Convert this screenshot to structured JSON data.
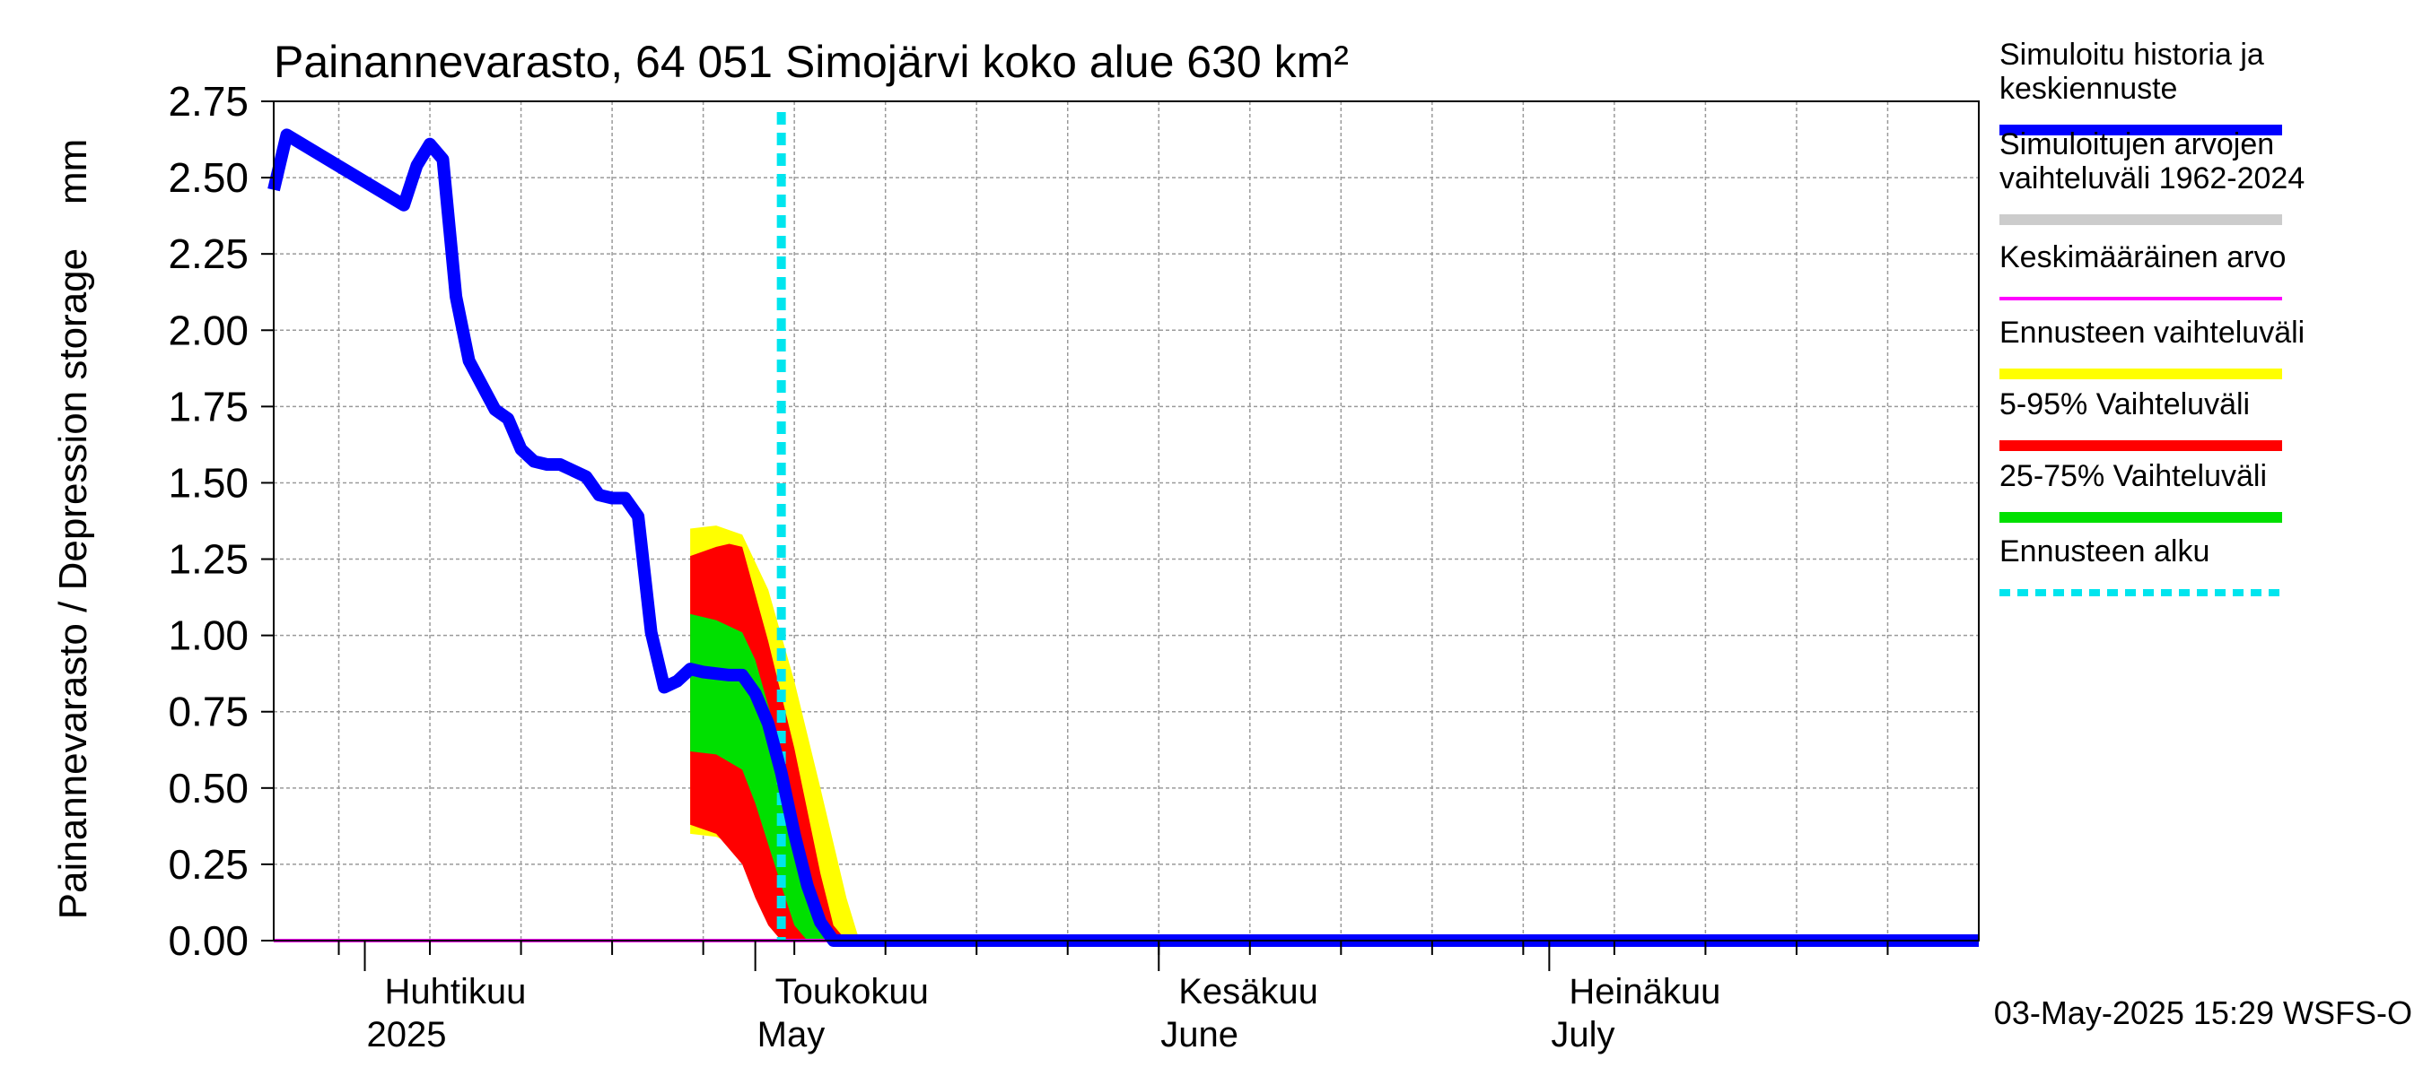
{
  "chart_data": {
    "type": "area",
    "title": "Painannevarasto, 64 051 Simojärvi koko alue 630 km²",
    "ylabel": "Painannevarasto / Depression storage    mm",
    "ylim": [
      0,
      2.75
    ],
    "yticks": [
      "0.00",
      "0.25",
      "0.50",
      "0.75",
      "1.00",
      "1.25",
      "1.50",
      "1.75",
      "2.00",
      "2.25",
      "2.50",
      "2.75"
    ],
    "xlim": [
      "2025-03-25",
      "2025-08-03"
    ],
    "grid": true,
    "month_labels": [
      {
        "date": "2025-04-01",
        "line1": "Huhtikuu",
        "line2": "2025"
      },
      {
        "date": "2025-05-01",
        "line1": "Toukokuu",
        "line2": "May"
      },
      {
        "date": "2025-06-01",
        "line1": "Kesäkuu",
        "line2": "June"
      },
      {
        "date": "2025-07-01",
        "line1": "Heinäkuu",
        "line2": "July"
      }
    ],
    "forecast_start": "2025-05-03",
    "footer": "03-May-2025 15:29 WSFS-O",
    "legend": [
      {
        "label": "Simuloitu historia ja keskiennuste",
        "color": "#0000ff",
        "style": "solid"
      },
      {
        "label": "Simuloitujen arvojen vaihteluväli 1962-2024",
        "color": "#cccccc",
        "style": "solid"
      },
      {
        "label": "Keskimääräinen arvo",
        "color": "#ff00ff",
        "style": "thin"
      },
      {
        "label": "Ennusteen vaihteluväli",
        "color": "#ffff00",
        "style": "solid"
      },
      {
        "label": "5-95% Vaihteluväli",
        "color": "#ff0000",
        "style": "solid"
      },
      {
        "label": "25-75% Vaihteluväli",
        "color": "#00e000",
        "style": "solid"
      },
      {
        "label": "Ennusteen alku",
        "color": "#00e5ee",
        "style": "dashed"
      }
    ],
    "legend_placement": "right",
    "series": [
      {
        "name": "Simuloitu historia ja keskiennuste",
        "color": "#0000ff",
        "points": [
          [
            "2025-03-25",
            2.46
          ],
          [
            "2025-03-26",
            2.64
          ],
          [
            "2025-04-04",
            2.41
          ],
          [
            "2025-04-05",
            2.54
          ],
          [
            "2025-04-06",
            2.61
          ],
          [
            "2025-04-07",
            2.56
          ],
          [
            "2025-04-08",
            2.11
          ],
          [
            "2025-04-09",
            1.9
          ],
          [
            "2025-04-11",
            1.74
          ],
          [
            "2025-04-12",
            1.71
          ],
          [
            "2025-04-13",
            1.61
          ],
          [
            "2025-04-14",
            1.57
          ],
          [
            "2025-04-15",
            1.56
          ],
          [
            "2025-04-16",
            1.56
          ],
          [
            "2025-04-18",
            1.52
          ],
          [
            "2025-04-19",
            1.46
          ],
          [
            "2025-04-20",
            1.45
          ],
          [
            "2025-04-21",
            1.45
          ],
          [
            "2025-04-22",
            1.39
          ],
          [
            "2025-04-23",
            1.01
          ],
          [
            "2025-04-24",
            0.83
          ],
          [
            "2025-04-25",
            0.85
          ],
          [
            "2025-04-26",
            0.89
          ],
          [
            "2025-04-27",
            0.88
          ],
          [
            "2025-04-29",
            0.87
          ],
          [
            "2025-04-30",
            0.87
          ],
          [
            "2025-05-01",
            0.81
          ],
          [
            "2025-05-02",
            0.71
          ],
          [
            "2025-05-03",
            0.55
          ],
          [
            "2025-05-04",
            0.35
          ],
          [
            "2025-05-05",
            0.18
          ],
          [
            "2025-05-06",
            0.06
          ],
          [
            "2025-05-07",
            0.0
          ],
          [
            "2025-08-03",
            0.0
          ]
        ]
      },
      {
        "name": "Keskimääräinen arvo",
        "color": "#ff00ff",
        "points": [
          [
            "2025-03-25",
            0.0
          ],
          [
            "2025-08-03",
            0.0
          ]
        ]
      }
    ],
    "bands": [
      {
        "name": "Ennusteen vaihteluväli",
        "color": "#ffff00",
        "upper": [
          [
            "2025-04-26",
            1.35
          ],
          [
            "2025-04-28",
            1.36
          ],
          [
            "2025-04-30",
            1.33
          ],
          [
            "2025-05-02",
            1.15
          ],
          [
            "2025-05-04",
            0.85
          ],
          [
            "2025-05-06",
            0.5
          ],
          [
            "2025-05-08",
            0.14
          ],
          [
            "2025-05-09",
            0.0
          ]
        ],
        "lower": [
          [
            "2025-04-26",
            0.35
          ],
          [
            "2025-04-28",
            0.34
          ],
          [
            "2025-04-30",
            0.3
          ],
          [
            "2025-05-02",
            0.14
          ],
          [
            "2025-05-03",
            0.0
          ]
        ]
      },
      {
        "name": "5-95% Vaihteluväli",
        "color": "#ff0000",
        "upper": [
          [
            "2025-04-26",
            1.26
          ],
          [
            "2025-04-28",
            1.29
          ],
          [
            "2025-04-29",
            1.3
          ],
          [
            "2025-04-30",
            1.29
          ],
          [
            "2025-05-02",
            0.98
          ],
          [
            "2025-05-04",
            0.63
          ],
          [
            "2025-05-06",
            0.22
          ],
          [
            "2025-05-07",
            0.05
          ],
          [
            "2025-05-08",
            0.0
          ]
        ],
        "lower": [
          [
            "2025-04-26",
            0.38
          ],
          [
            "2025-04-28",
            0.35
          ],
          [
            "2025-04-30",
            0.25
          ],
          [
            "2025-05-01",
            0.14
          ],
          [
            "2025-05-02",
            0.05
          ],
          [
            "2025-05-03",
            0.0
          ]
        ]
      },
      {
        "name": "25-75% Vaihteluväli",
        "color": "#00e000",
        "upper": [
          [
            "2025-04-26",
            1.07
          ],
          [
            "2025-04-28",
            1.05
          ],
          [
            "2025-04-30",
            1.01
          ],
          [
            "2025-05-01",
            0.92
          ],
          [
            "2025-05-03",
            0.62
          ],
          [
            "2025-05-05",
            0.22
          ],
          [
            "2025-05-06",
            0.05
          ],
          [
            "2025-05-07",
            0.0
          ]
        ],
        "lower": [
          [
            "2025-04-26",
            0.62
          ],
          [
            "2025-04-28",
            0.61
          ],
          [
            "2025-04-30",
            0.56
          ],
          [
            "2025-05-01",
            0.45
          ],
          [
            "2025-05-03",
            0.18
          ],
          [
            "2025-05-04",
            0.05
          ],
          [
            "2025-05-05",
            0.0
          ]
        ]
      }
    ]
  }
}
